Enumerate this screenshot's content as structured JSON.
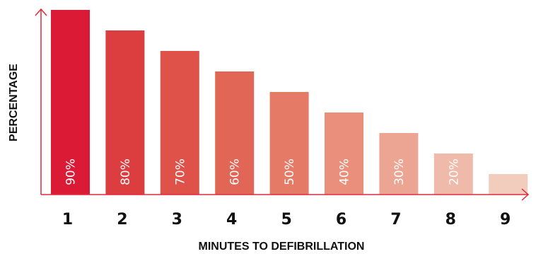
{
  "chart_data": {
    "type": "bar",
    "xlabel": "MINUTES TO DEFIBRILLATION",
    "ylabel": "PERCENTAGE",
    "categories": [
      "1",
      "2",
      "3",
      "4",
      "5",
      "6",
      "7",
      "8",
      "9"
    ],
    "values": [
      90,
      80,
      70,
      60,
      50,
      40,
      30,
      20,
      10
    ],
    "data_labels": [
      "90%",
      "80%",
      "70%",
      "60%",
      "50%",
      "40%",
      "30%",
      "20%",
      ""
    ],
    "bar_colors": [
      "#db1b35",
      "#dc3d3f",
      "#df5249",
      "#e26655",
      "#e57a66",
      "#e98f7c",
      "#eca592",
      "#efbaa9",
      "#f2ccbd"
    ],
    "axis_color": "#e0283a",
    "ylim": [
      0,
      90
    ],
    "grid": false,
    "legend": "none"
  }
}
